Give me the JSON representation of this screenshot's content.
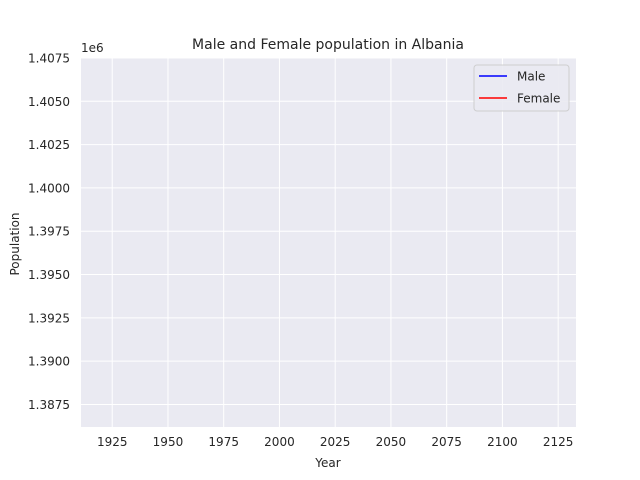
{
  "chart_data": {
    "type": "line",
    "title": "Male and Female population in Albania",
    "xlabel": "Year",
    "ylabel": "Population",
    "y_offset_label": "1e6",
    "y_multiplier": 1000000,
    "xlim": [
      1911,
      2133
    ],
    "ylim": [
      1.3862,
      1.4075
    ],
    "x_ticks": [
      1925,
      1950,
      1975,
      2000,
      2025,
      2050,
      2075,
      2100,
      2125
    ],
    "x_tick_labels": [
      "1925",
      "1950",
      "1975",
      "2000",
      "2025",
      "2050",
      "2075",
      "2100",
      "2125"
    ],
    "y_ticks": [
      1.3875,
      1.39,
      1.3925,
      1.395,
      1.3975,
      1.4,
      1.4025,
      1.405,
      1.4075
    ],
    "y_tick_labels": [
      "1.3875",
      "1.3900",
      "1.3925",
      "1.3950",
      "1.3975",
      "1.4000",
      "1.4025",
      "1.4050",
      "1.4075"
    ],
    "grid": true,
    "legend_position": "top-right",
    "series": [
      {
        "name": "Male",
        "color": "#0000ff",
        "x": [],
        "y": []
      },
      {
        "name": "Female",
        "color": "#ff0000",
        "x": [],
        "y": []
      }
    ]
  }
}
